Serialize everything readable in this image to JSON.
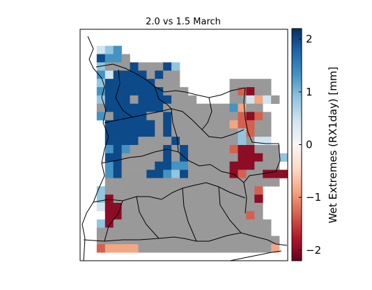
{
  "chart_data": {
    "type": "heatmap",
    "title": "2.0 vs 1.5 March",
    "colorbar": {
      "label": "Wet Extremes (RX1day) [mm]",
      "range": [
        -2.2,
        2.2
      ],
      "ticks": [
        2,
        1,
        0,
        -1,
        -2
      ],
      "tick_labels": [
        "2",
        "1",
        "0",
        "−1",
        "−2"
      ],
      "colormap": "RdBu"
    },
    "grid": {
      "cols": 25,
      "rows": 28,
      "legend": {
        "0": "no data",
        "8": "not significant (grey)",
        "1": "value -2.0",
        "2": "value -1.3",
        "3": "value -0.6",
        "4": "value 0.4",
        "5": "value 1.0",
        "6": "value 1.5",
        "7": "value 2.0"
      },
      "rows_data": [
        "0000000000000000000000000",
        "0000000000000000000000000",
        "0045600000000000000000000",
        "0076680000000000000000000",
        "0058887888750000000000000",
        "0064777787880000000000000",
        "0057777778880000008888800",
        "0067777777888000008218800",
        "0057778777788800008843480",
        "0087777777888888886388000",
        "0068777788788888888212800",
        "0007777778788888883228800",
        "0007777778788888888528800",
        "0007777888878888888584400",
        "0006768888787888882118880",
        "0007788888787888888111885",
        "0006788887766888881118880",
        "0006788877657888881288111",
        "0008888888888888888888880",
        "0058888888888888888882000",
        "0051888888888888888881000",
        "0041188888888888888888000",
        "0001188888888888888828000",
        "0051888888888888888888800",
        "0088888888888888888888800",
        "0088888888888888888888880",
        "0023333888888888888888830",
        "0000000000000000000000000"
      ]
    }
  }
}
